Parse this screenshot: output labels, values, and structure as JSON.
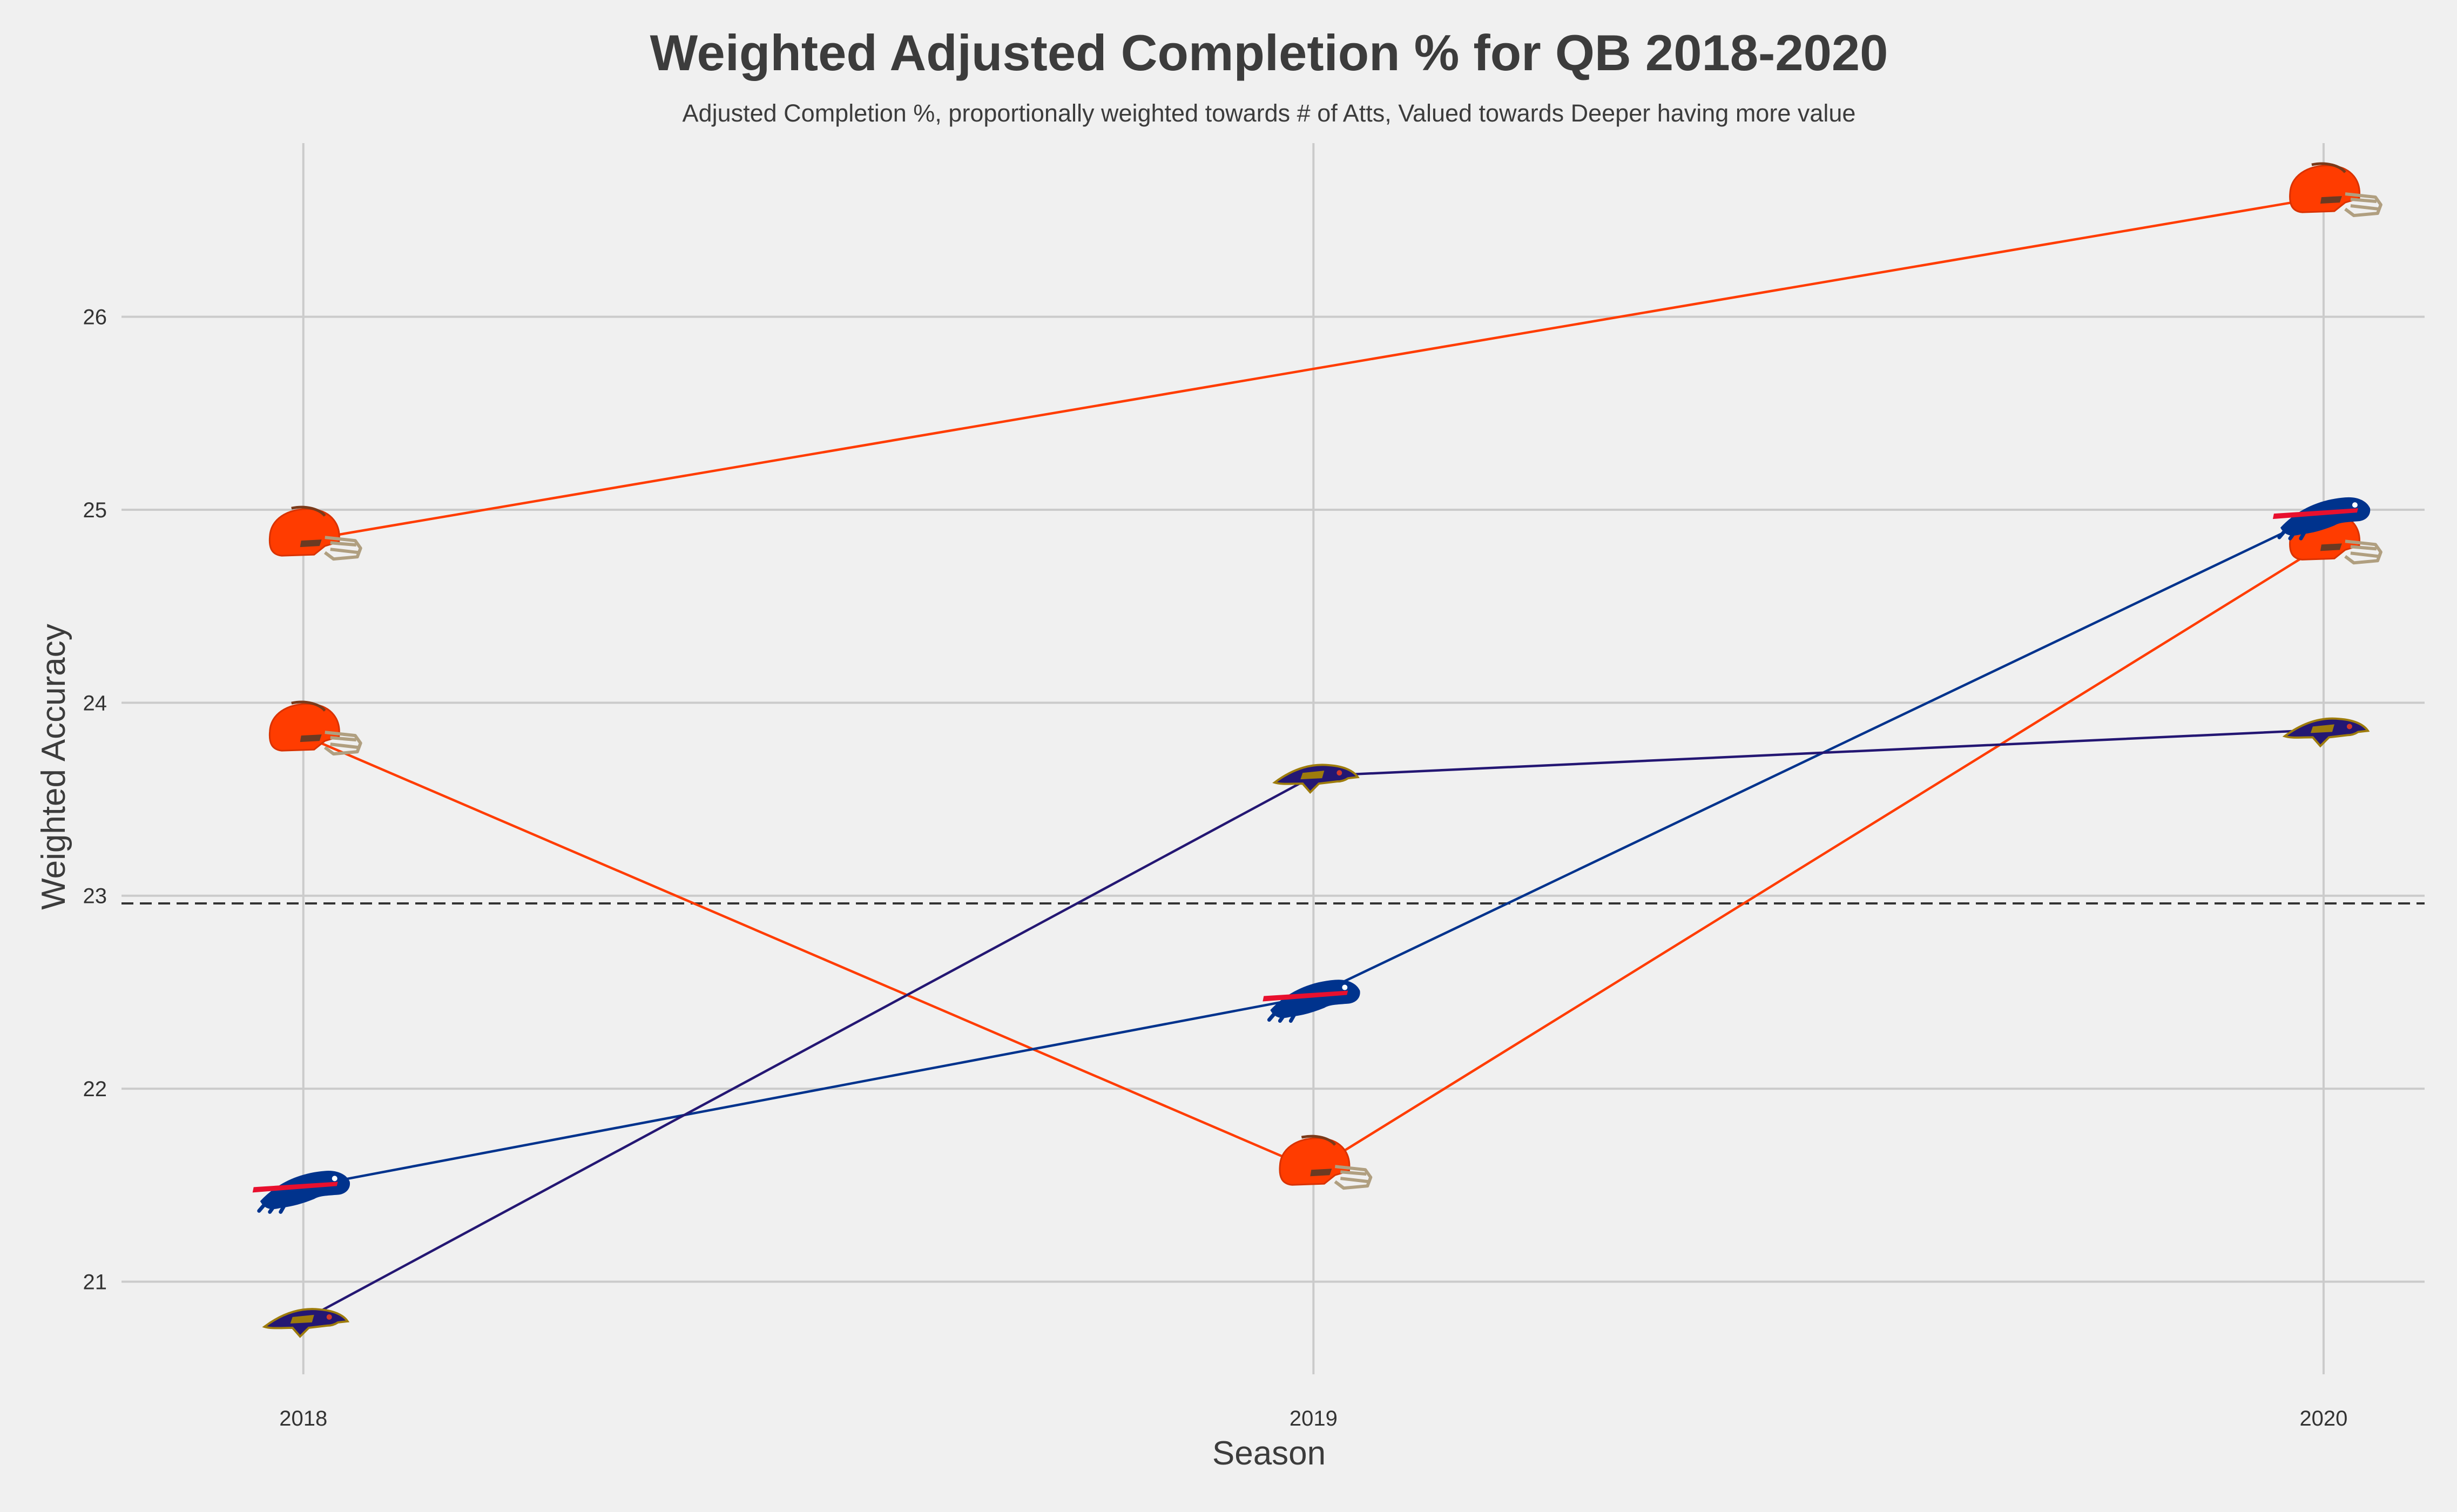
{
  "chart_data": {
    "type": "line",
    "title": "Weighted Adjusted Completion % for QB 2018-2020",
    "subtitle": "Adjusted Completion %, proportionally weighted towards # of Atts, Valued towards Deeper having more value",
    "xlabel": "Season",
    "ylabel": "Weighted Accuracy",
    "x": [
      "2018",
      "2019",
      "2020"
    ],
    "xlim": [
      2017.82,
      2020.1
    ],
    "ylim": [
      20.52,
      26.9
    ],
    "yticks": [
      21,
      22,
      23,
      24,
      25,
      26
    ],
    "grid": true,
    "legend": "none",
    "reference_line": {
      "y": 22.96,
      "style": "dashed",
      "color": "#333333"
    },
    "series": [
      {
        "team": "browns",
        "color": "#ff3c00",
        "x": [
          2018,
          2020
        ],
        "values": [
          24.84,
          26.62
        ],
        "marker": "browns-helmet-icon"
      },
      {
        "team": "browns",
        "color": "#ff3c00",
        "x": [
          2018,
          2019,
          2020
        ],
        "values": [
          23.83,
          21.58,
          24.82
        ],
        "marker": "browns-helmet-icon"
      },
      {
        "team": "bills",
        "color": "#00338d",
        "x": [
          2018,
          2019,
          2020
        ],
        "values": [
          21.49,
          22.48,
          24.98
        ],
        "marker": "bills-logo-icon"
      },
      {
        "team": "ravens",
        "color": "#241773",
        "x": [
          2018,
          2019,
          2020
        ],
        "values": [
          20.8,
          23.62,
          23.86
        ],
        "marker": "ravens-logo-icon"
      }
    ]
  }
}
